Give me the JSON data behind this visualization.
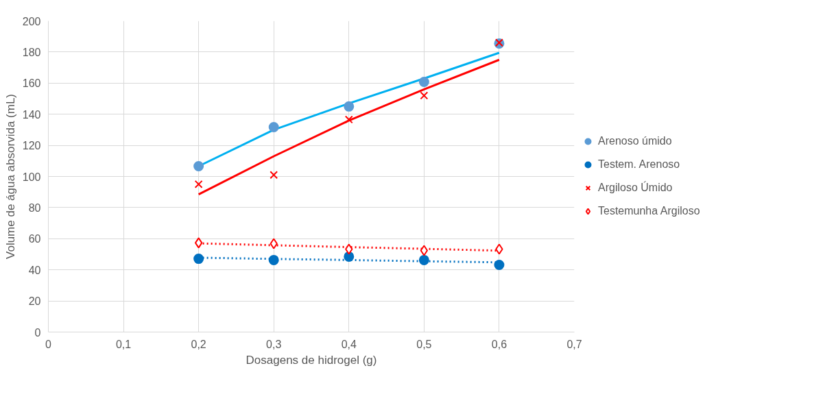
{
  "chart_data": {
    "type": "scatter",
    "xlabel": "Dosagens de hidrogel (g)",
    "ylabel": "Volume de água absorvida (mL)",
    "x": [
      0.2,
      0.3,
      0.4,
      0.5,
      0.6
    ],
    "xlim": [
      0,
      0.7
    ],
    "xticks": [
      0,
      {
        "value": 0.1,
        "label": "0,1"
      },
      {
        "value": 0.2,
        "label": "0,2"
      },
      {
        "value": 0.3,
        "label": "0,3"
      },
      {
        "value": 0.4,
        "label": "0,4"
      },
      {
        "value": 0.5,
        "label": "0,5"
      },
      {
        "value": 0.6,
        "label": "0,6"
      },
      {
        "value": 0.7,
        "label": "0,7"
      }
    ],
    "ylim": [
      0,
      200
    ],
    "yticks": [
      0,
      20,
      40,
      60,
      80,
      100,
      120,
      140,
      160,
      180,
      200
    ],
    "grid": true,
    "legend": "right",
    "series": [
      {
        "type": "line",
        "color": "#00b0f0",
        "values": [
          106.6,
          130,
          147,
          163,
          179.5
        ]
      },
      {
        "type": "line",
        "color": "#ff0000",
        "values": [
          88.5,
          113,
          136,
          156,
          175
        ]
      },
      {
        "type": "line",
        "color": "#0070c0",
        "line_style": "dotted",
        "values": [
          47.8,
          47,
          46.3,
          45.5,
          44.8
        ]
      },
      {
        "type": "line",
        "color": "#ff0000",
        "line_style": "dotted",
        "values": [
          57,
          55.8,
          54.6,
          53.5,
          52.3
        ]
      },
      {
        "name": "Arenoso úmido",
        "color": "#5b9bd5",
        "marker": "circle",
        "values": [
          106.6,
          131.7,
          145,
          160.8,
          185.5
        ]
      },
      {
        "name": "Testem. Arenoso",
        "color": "#0070c0",
        "marker": "circle",
        "values": [
          47.1,
          46.3,
          48.5,
          46.3,
          43.2
        ]
      },
      {
        "name": "Argiloso Úmido",
        "color": "#ff0000",
        "marker": "cross",
        "values": [
          95,
          101,
          136.6,
          152,
          186
        ]
      },
      {
        "name": "Testemunha Argiloso",
        "color": "#ff0000",
        "marker": "diamond",
        "values": [
          57.3,
          56.8,
          53.3,
          52.4,
          53.3
        ]
      }
    ]
  }
}
